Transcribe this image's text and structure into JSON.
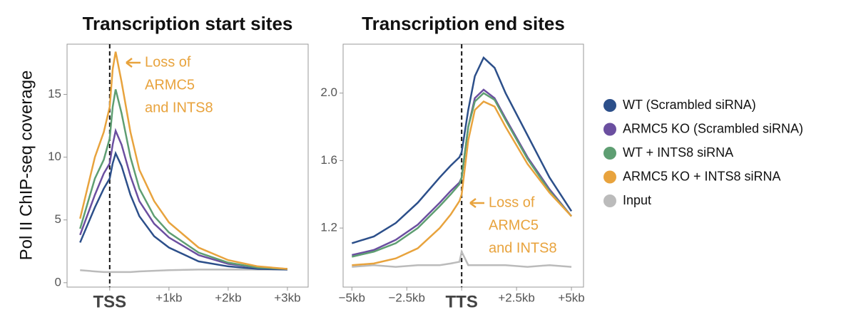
{
  "chart_data": [
    {
      "type": "line",
      "title": "Transcription start sites",
      "ylabel": "Pol II ChIP-seq coverage",
      "x": [
        -0.5,
        -0.25,
        -0.1,
        0,
        0.05,
        0.1,
        0.2,
        0.35,
        0.5,
        0.75,
        1,
        1.5,
        2,
        2.5,
        3
      ],
      "xlim": [
        -0.72,
        3.35
      ],
      "ylim": [
        -0.35,
        19
      ],
      "xticks": [
        {
          "value": 0,
          "label": "TSS"
        },
        {
          "value": 1,
          "label": "+1kb"
        },
        {
          "value": 2,
          "label": "+2kb"
        },
        {
          "value": 3,
          "label": "+3kb"
        }
      ],
      "yticks": [
        0,
        5,
        10,
        15
      ],
      "series": [
        {
          "values": [
            3.2,
            6,
            7.5,
            8.3,
            9.5,
            10.3,
            9.3,
            7,
            5.3,
            3.7,
            2.8,
            1.7,
            1.3,
            1.1,
            1.05
          ]
        },
        {
          "values": [
            3.8,
            7,
            8.7,
            9.5,
            11,
            12.1,
            11,
            8.5,
            6.5,
            4.7,
            3.6,
            2.2,
            1.5,
            1.2,
            1.1
          ]
        },
        {
          "values": [
            4.3,
            8.3,
            9.8,
            11.5,
            14,
            15.4,
            13.5,
            10,
            7.5,
            5.3,
            4,
            2.4,
            1.6,
            1.2,
            1.1
          ]
        },
        {
          "values": [
            5.1,
            10,
            12,
            14,
            17,
            18.4,
            16,
            12,
            9,
            6.5,
            4.8,
            2.8,
            1.8,
            1.3,
            1.1
          ]
        },
        {
          "values": [
            1.0,
            0.9,
            0.85,
            0.85,
            0.85,
            0.85,
            0.85,
            0.85,
            0.9,
            0.95,
            1.0,
            1.05,
            1.05,
            1.05,
            1.05
          ]
        }
      ],
      "annotation": [
        "Loss of",
        "ARMC5",
        "and INTS8"
      ]
    },
    {
      "type": "line",
      "title": "Transcription end sites",
      "x": [
        -5,
        -4,
        -3,
        -2,
        -1,
        -0.5,
        -0.1,
        0,
        0.3,
        0.6,
        1,
        1.5,
        2,
        3,
        4,
        5
      ],
      "xlim": [
        -5.4,
        5.55
      ],
      "ylim": [
        0.85,
        2.29
      ],
      "xticks": [
        {
          "value": -5,
          "label": "−5kb"
        },
        {
          "value": -2.5,
          "label": "−2.5kb"
        },
        {
          "value": 0,
          "label": "TTS"
        },
        {
          "value": 2.5,
          "label": "+2.5kb"
        },
        {
          "value": 5,
          "label": "+5kb"
        }
      ],
      "yticks": [
        1.2,
        1.6,
        {
          "value": 2,
          "label": "2.0"
        }
      ],
      "series": [
        {
          "values": [
            1.11,
            1.15,
            1.23,
            1.35,
            1.5,
            1.57,
            1.62,
            1.65,
            1.9,
            2.1,
            2.21,
            2.15,
            2.0,
            1.75,
            1.5,
            1.3
          ]
        },
        {
          "values": [
            1.04,
            1.07,
            1.13,
            1.22,
            1.35,
            1.42,
            1.47,
            1.5,
            1.8,
            1.97,
            2.02,
            1.97,
            1.85,
            1.62,
            1.43,
            1.27
          ]
        },
        {
          "values": [
            1.03,
            1.06,
            1.11,
            1.2,
            1.33,
            1.4,
            1.46,
            1.5,
            1.8,
            1.95,
            2.0,
            1.96,
            1.84,
            1.61,
            1.42,
            1.27
          ]
        },
        {
          "values": [
            0.98,
            0.99,
            1.02,
            1.08,
            1.2,
            1.28,
            1.36,
            1.4,
            1.72,
            1.9,
            1.95,
            1.92,
            1.8,
            1.58,
            1.41,
            1.27
          ]
        },
        {
          "values": [
            0.97,
            0.98,
            0.97,
            0.98,
            0.98,
            0.99,
            1.0,
            1.06,
            0.98,
            0.98,
            0.98,
            0.98,
            0.98,
            0.97,
            0.98,
            0.97
          ]
        }
      ],
      "annotation": [
        "Loss of",
        "ARMC5",
        "and INTS8"
      ]
    }
  ],
  "legend": [
    {
      "name": "WT (Scrambled siRNA)",
      "color": "#2c4f8a"
    },
    {
      "name": "ARMC5 KO (Scrambled siRNA)",
      "color": "#6b4fa0"
    },
    {
      "name": "WT + INTS8 siRNA",
      "color": "#5e9e72"
    },
    {
      "name": "ARMC5 KO + INTS8 siRNA",
      "color": "#e8a33d"
    },
    {
      "name": "Input",
      "color": "#bbbbbb"
    }
  ]
}
